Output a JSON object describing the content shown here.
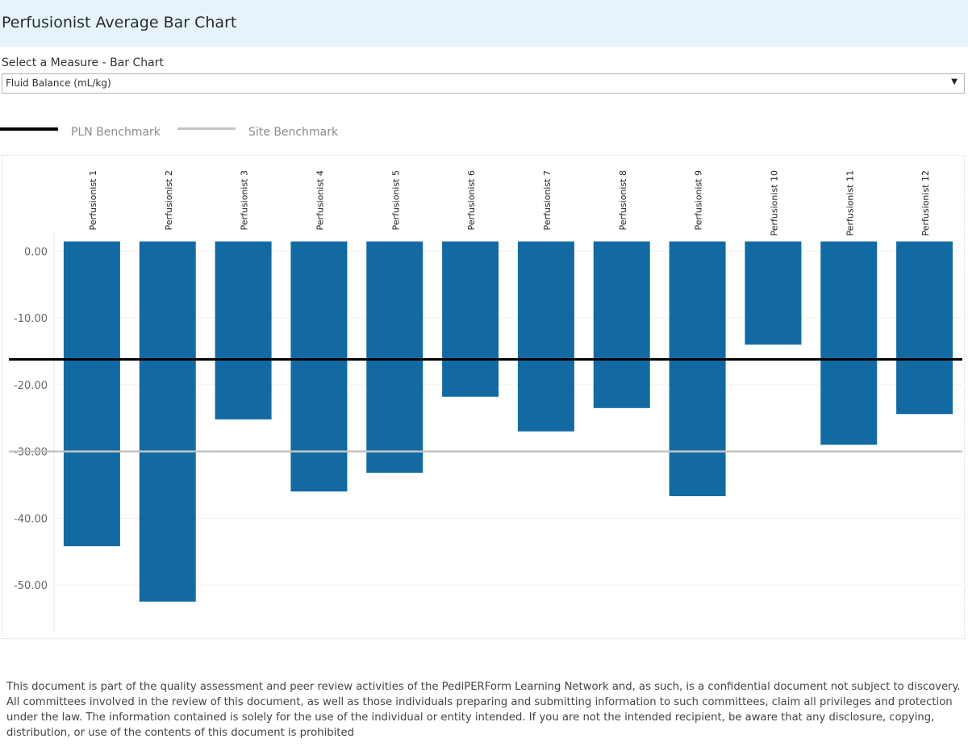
{
  "header": {
    "title": "Perfusionist Average Bar Chart"
  },
  "selector": {
    "label": "Select a Measure - Bar Chart",
    "selected": "Fluid Balance (mL/kg)",
    "arrow_icon": "dropdown-arrow-icon"
  },
  "legend": {
    "items": [
      {
        "label": "PLN Benchmark",
        "color": "#000000"
      },
      {
        "label": "Site Benchmark",
        "color": "#c4c4c4"
      }
    ]
  },
  "colors": {
    "bar": "#136aa3",
    "gridline": "#f0f0f0",
    "header_bg": "#e6f3fb"
  },
  "chart_data": {
    "type": "bar",
    "title": "Perfusionist Average Bar Chart",
    "xlabel": "",
    "ylabel": "",
    "categories": [
      "Perfusionist 1",
      "Perfusionist 2",
      "Perfusionist 3",
      "Perfusionist 4",
      "Perfusionist 5",
      "Perfusionist 6",
      "Perfusionist 7",
      "Perfusionist 8",
      "Perfusionist 9",
      "Perfusionist 10",
      "Perfusionist 11",
      "Perfusionist 12"
    ],
    "values": [
      -44.2,
      -52.5,
      -25.2,
      -36.0,
      -33.2,
      -21.8,
      -27.0,
      -23.5,
      -36.7,
      -14.0,
      -29.0,
      -24.4
    ],
    "ylim": [
      -57,
      1.5
    ],
    "yticks": [
      0,
      -10,
      -20,
      -30,
      -40,
      -50
    ],
    "ytick_labels": [
      "0.00",
      "-10.00",
      "-20.00",
      "-30.00",
      "-40.00",
      "-50.00"
    ],
    "reference_lines": [
      {
        "name": "PLN Benchmark",
        "value": -16.2,
        "color": "#000000"
      },
      {
        "name": "Site Benchmark",
        "value": -30.0,
        "color": "#c4c4c4"
      }
    ],
    "legend_position": "top-left",
    "grid": true
  },
  "disclaimer": "This document is part of the quality assessment and peer review activities of the PediPERForm Learning Network and, as such, is a confidential document not subject to discovery. All committees involved in the review of this document, as well as those individuals preparing and submitting information to such committees, claim all privileges and protection under the law. The information contained is solely for the use of the individual or entity intended. If you are not the intended recipient, be aware that any disclosure, copying, distribution, or use of the contents of this document is prohibited"
}
